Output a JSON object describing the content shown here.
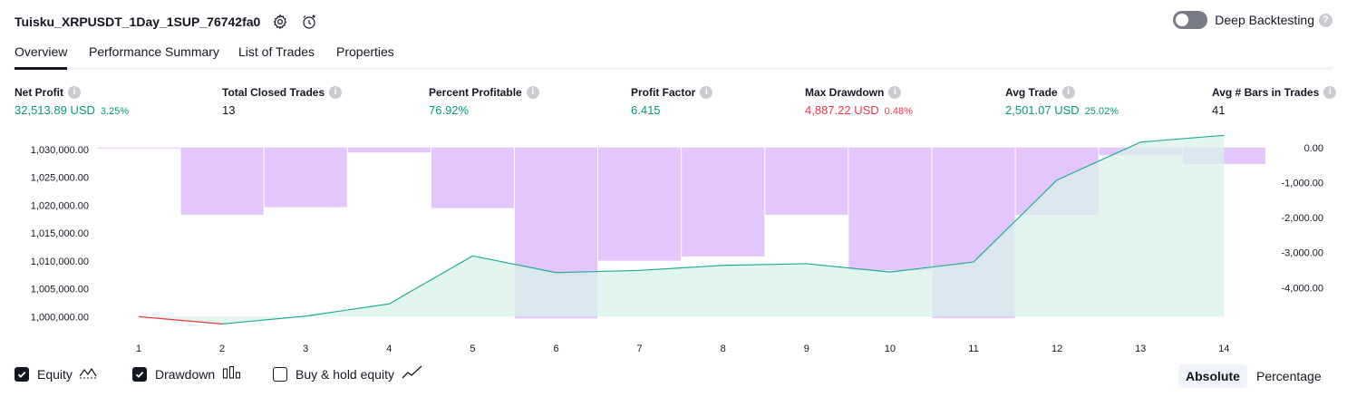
{
  "header": {
    "title": "Tuisku_XRPUSDT_1Day_1SUP_76742fa0",
    "deep_backtesting_label": "Deep Backtesting"
  },
  "tabs": [
    "Overview",
    "Performance Summary",
    "List of Trades",
    "Properties"
  ],
  "metrics": {
    "net_profit": {
      "label": "Net Profit",
      "value": "32,513.89 USD",
      "pct": "3.25%"
    },
    "total_closed_trades": {
      "label": "Total Closed Trades",
      "value": "13"
    },
    "percent_profitable": {
      "label": "Percent Profitable",
      "value": "76.92%"
    },
    "profit_factor": {
      "label": "Profit Factor",
      "value": "6.415"
    },
    "max_drawdown": {
      "label": "Max Drawdown",
      "value": "4,887.22 USD",
      "pct": "0.48%"
    },
    "avg_trade": {
      "label": "Avg Trade",
      "value": "2,501.07 USD",
      "pct": "25.02%"
    },
    "avg_bars": {
      "label": "Avg # Bars in Trades",
      "value": "41"
    }
  },
  "colors": {
    "positive": "#089981",
    "negative": "#f23645",
    "drawdown_bar": "#e1c4fc",
    "equity_line": "#22ab94",
    "equity_fill": "#d8f1ea"
  },
  "chart_data": {
    "type": "line",
    "x": [
      1,
      2,
      3,
      4,
      5,
      6,
      7,
      8,
      9,
      10,
      11,
      12,
      13,
      14
    ],
    "x_tick_labels": [
      "1",
      "2",
      "3",
      "4",
      "5",
      "6",
      "7",
      "8",
      "9",
      "10",
      "11",
      "12",
      "13",
      "14"
    ],
    "left_axis_ticks": [
      "1,030,000.00",
      "1,025,000.00",
      "1,020,000.00",
      "1,015,000.00",
      "1,010,000.00",
      "1,005,000.00",
      "1,000,000.00"
    ],
    "left_axis_tick_values": [
      1030000,
      1025000,
      1020000,
      1015000,
      1010000,
      1005000,
      1000000
    ],
    "right_axis_ticks": [
      "0.00",
      "-1,000.00",
      "-2,000.00",
      "-3,000.00",
      "-4,000.00"
    ],
    "right_axis_tick_values": [
      0,
      -1000,
      -2000,
      -3000,
      -4000
    ],
    "ylim_left": [
      998600,
      1032400
    ],
    "ylim_right": [
      -5050,
      330
    ],
    "equity": [
      1000000,
      998700,
      1000100,
      1002300,
      1010900,
      1007900,
      1008300,
      1009200,
      1009500,
      1008000,
      1009800,
      1024500,
      1031300,
      1032514
    ],
    "drawdown": [
      0,
      -1920,
      -1700,
      -140,
      -1730,
      -4880,
      -3230,
      -3110,
      -1920,
      -3510,
      -4870,
      -1920,
      -220,
      -470
    ]
  },
  "legend": {
    "equity_label": "Equity",
    "drawdown_label": "Drawdown",
    "buy_hold_label": "Buy & hold equity"
  },
  "view_modes": {
    "absolute": "Absolute",
    "percentage": "Percentage"
  }
}
